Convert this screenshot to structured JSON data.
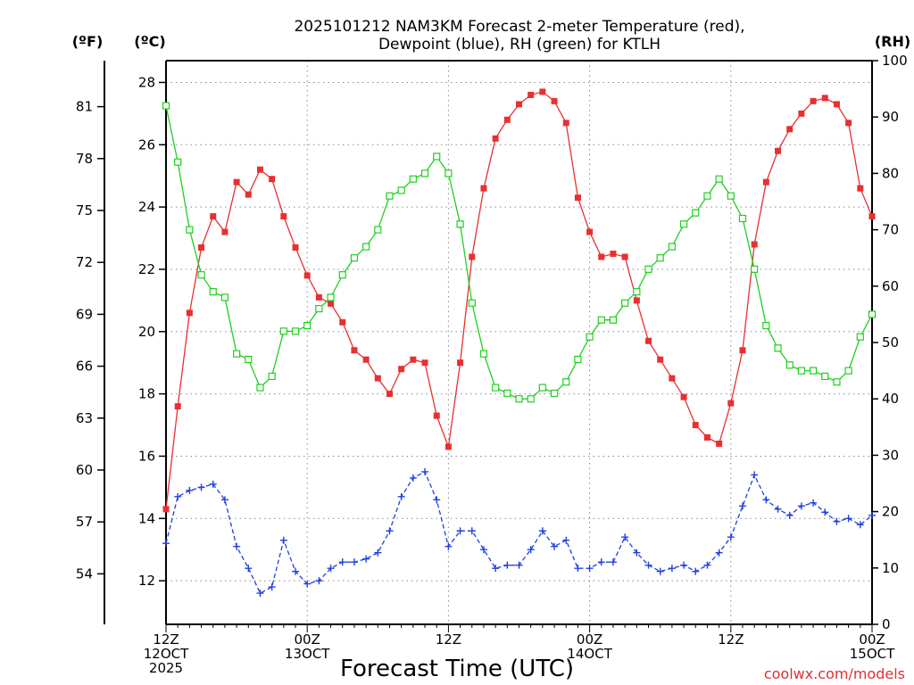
{
  "chart_data": {
    "type": "line",
    "title_lines": [
      "2025101212 NAM3KM Forecast 2-meter Temperature (red),",
      "Dewpoint (blue), RH (green) for KTLH"
    ],
    "xlabel": "Forecast Time (UTC)",
    "credit": "coolwx.com/models",
    "units": {
      "fahrenheit": "(ºF)",
      "celsius": "(ºC)",
      "rh": "(RH)"
    },
    "x_range_hours": [
      0,
      60
    ],
    "celsius_range": [
      10.6,
      28.7
    ],
    "rh_range": [
      0,
      100
    ],
    "celsius_ticks": [
      "12",
      "14",
      "16",
      "18",
      "20",
      "22",
      "24",
      "26",
      "28"
    ],
    "fahrenheit_ticks": [
      "54",
      "57",
      "60",
      "63",
      "66",
      "69",
      "72",
      "75",
      "78",
      "81"
    ],
    "rh_ticks": [
      "0",
      "10",
      "20",
      "30",
      "40",
      "50",
      "60",
      "70",
      "80",
      "90",
      "100"
    ],
    "x_ticks": [
      {
        "hour": 0,
        "lines": [
          "12Z",
          "12OCT",
          "2025"
        ]
      },
      {
        "hour": 12,
        "lines": [
          "00Z",
          "13OCT"
        ]
      },
      {
        "hour": 24,
        "lines": [
          "12Z"
        ]
      },
      {
        "hour": 36,
        "lines": [
          "00Z",
          "14OCT"
        ]
      },
      {
        "hour": 48,
        "lines": [
          "12Z"
        ]
      },
      {
        "hour": 60,
        "lines": [
          "00Z",
          "15OCT"
        ]
      }
    ],
    "series": [
      {
        "name": "Temperature",
        "axis": "celsius",
        "color": "#e83030",
        "marker": "filled-square",
        "values": [
          14.3,
          17.6,
          20.6,
          22.7,
          23.7,
          23.2,
          24.8,
          24.4,
          25.2,
          24.9,
          23.7,
          22.7,
          21.8,
          21.1,
          20.9,
          20.3,
          19.4,
          19.1,
          18.5,
          18.0,
          18.8,
          19.1,
          19.0,
          17.3,
          16.3,
          19.0,
          22.4,
          24.6,
          26.2,
          26.8,
          27.3,
          27.6,
          27.7,
          27.4,
          26.7,
          24.3,
          23.2,
          22.4,
          22.5,
          22.4,
          21.0,
          19.7,
          19.1,
          18.5,
          17.9,
          17.0,
          16.6,
          16.4,
          17.7,
          19.4,
          22.8,
          24.8,
          25.8,
          26.5,
          27.0,
          27.4,
          27.5,
          27.3,
          26.7,
          24.6,
          23.7
        ]
      },
      {
        "name": "Dewpoint",
        "axis": "celsius",
        "color": "#2040e0",
        "marker": "plus",
        "values": [
          13.2,
          14.7,
          14.9,
          15.0,
          15.1,
          14.6,
          13.1,
          12.4,
          11.6,
          11.8,
          13.3,
          12.3,
          11.9,
          12.0,
          12.4,
          12.6,
          12.6,
          12.7,
          12.9,
          13.6,
          14.7,
          15.3,
          15.5,
          14.6,
          13.1,
          13.6,
          13.6,
          13.0,
          12.4,
          12.5,
          12.5,
          13.0,
          13.6,
          13.1,
          13.3,
          12.4,
          12.4,
          12.6,
          12.6,
          13.4,
          12.9,
          12.5,
          12.3,
          12.4,
          12.5,
          12.3,
          12.5,
          12.9,
          13.4,
          14.4,
          15.4,
          14.6,
          14.3,
          14.1,
          14.4,
          14.5,
          14.2,
          13.9,
          14.0,
          13.8,
          14.1
        ]
      },
      {
        "name": "Relative Humidity",
        "axis": "rh",
        "color": "#20d020",
        "marker": "open-square",
        "values": [
          92,
          82,
          70,
          62,
          59,
          58,
          48,
          47,
          42,
          44,
          52,
          52,
          53,
          56,
          58,
          62,
          65,
          67,
          70,
          76,
          77,
          79,
          80,
          83,
          80,
          71,
          57,
          48,
          42,
          41,
          40,
          40,
          42,
          41,
          43,
          47,
          51,
          54,
          54,
          57,
          59,
          63,
          65,
          67,
          71,
          73,
          76,
          79,
          76,
          72,
          63,
          53,
          49,
          46,
          45,
          45,
          44,
          43,
          45,
          51,
          55
        ]
      }
    ]
  }
}
